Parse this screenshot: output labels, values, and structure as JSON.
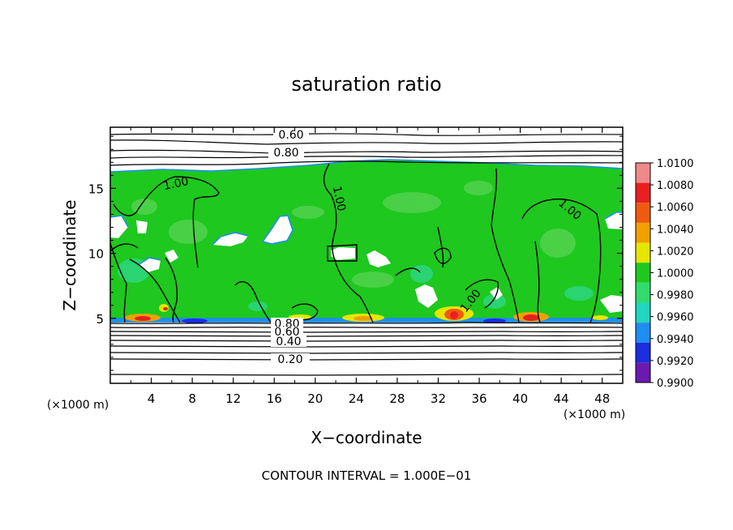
{
  "chart_data": {
    "type": "heatmap",
    "title": "saturation ratio",
    "xlabel": "X−coordinate",
    "ylabel": "Z−coordinate",
    "x_unit_left": "(×1000 m)",
    "x_unit_right": "(×1000 m)",
    "x_ticks": [
      "4",
      "8",
      "12",
      "16",
      "20",
      "24",
      "28",
      "32",
      "36",
      "40",
      "44",
      "48"
    ],
    "x_tick_values": [
      4,
      8,
      12,
      16,
      20,
      24,
      28,
      32,
      36,
      40,
      44,
      48
    ],
    "y_ticks": [
      "5",
      "10",
      "15"
    ],
    "y_tick_values": [
      5,
      10,
      15
    ],
    "xlim": [
      0,
      50
    ],
    "ylim": [
      0,
      19.7
    ],
    "footer": "CONTOUR INTERVAL = 1.000E−01",
    "colorbar": {
      "labels": [
        "1.0100",
        "1.0080",
        "1.0060",
        "1.0040",
        "1.0020",
        "1.0000",
        "0.9980",
        "0.9960",
        "0.9940",
        "0.9920",
        "0.9900"
      ],
      "colors": [
        "#f08a8a",
        "#e82020",
        "#f05a10",
        "#f0a000",
        "#e6e600",
        "#1ec81e",
        "#30dc6e",
        "#20d6c0",
        "#1e8ef0",
        "#1a2ee0",
        "#6a1ab0"
      ]
    },
    "contour_labels": [
      "0.60",
      "0.80",
      "1.00",
      "1.00",
      "1.00",
      "1.00",
      "0.80",
      "0.60",
      "0.40",
      "0.20"
    ],
    "contour_levels_upper": [
      0.5,
      0.6,
      0.7,
      0.8,
      0.9
    ],
    "contour_levels_lower": [
      0.8,
      0.7,
      0.6,
      0.5,
      0.4,
      0.3,
      0.2,
      0.1
    ],
    "contour_interval": 0.1
  }
}
